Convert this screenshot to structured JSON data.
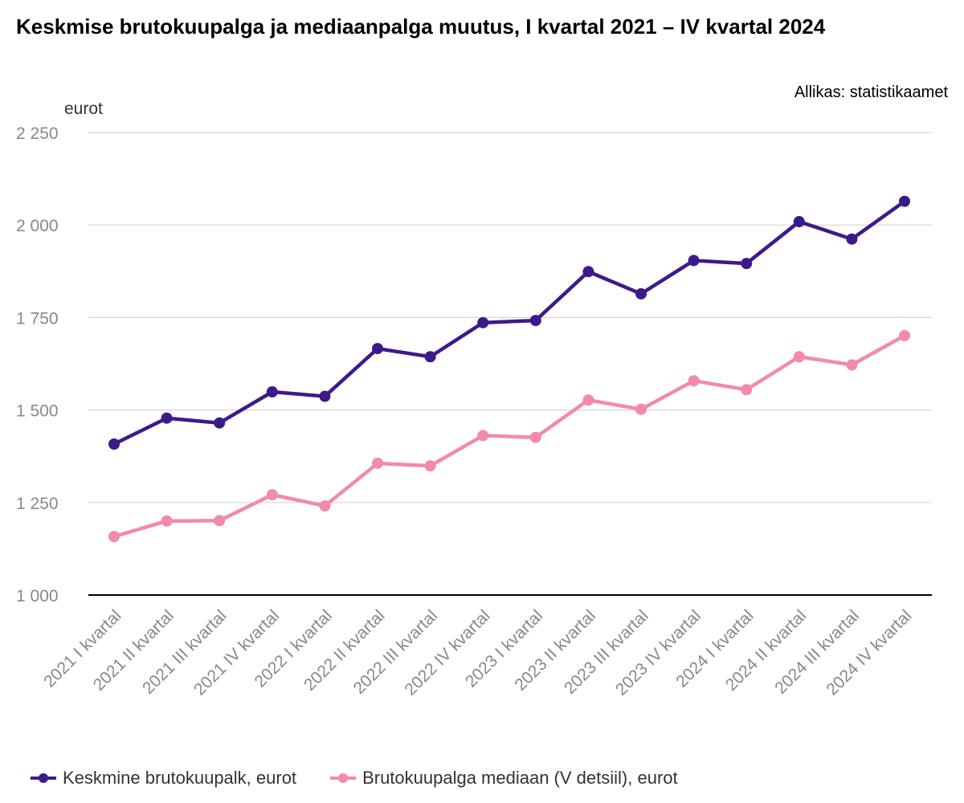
{
  "chart_data": {
    "type": "line",
    "title": "Keskmise brutokuupalga ja mediaanpalga muutus, I kvartal 2021 – IV kvartal 2024",
    "source": "Allikas: statistikaamet",
    "ylabel": "eurot",
    "ylim": [
      1000,
      2250
    ],
    "yticks": [
      1000,
      1250,
      1500,
      1750,
      2000,
      2250
    ],
    "ytick_labels": [
      "1 000",
      "1 250",
      "1 500",
      "1 750",
      "2 000",
      "2 250"
    ],
    "grid": true,
    "legend_position": "bottom-left",
    "categories": [
      "2021 I kvartal",
      "2021 II kvartal",
      "2021 III kvartal",
      "2021 IV kvartal",
      "2022 I kvartal",
      "2022 II kvartal",
      "2022 III kvartal",
      "2022 IV kvartal",
      "2023 I kvartal",
      "2023 II kvartal",
      "2023 III kvartal",
      "2023 IV kvartal",
      "2024 I kvartal",
      "2024 II kvartal",
      "2024 III kvartal",
      "2024 IV kvartal"
    ],
    "series": [
      {
        "name": "Keskmine brutokuupalk, eurot",
        "color": "#3d1a8a",
        "values": [
          1408,
          1478,
          1465,
          1549,
          1537,
          1666,
          1644,
          1736,
          1742,
          1874,
          1814,
          1904,
          1896,
          2009,
          1962,
          2064
        ]
      },
      {
        "name": "Brutokuupalga mediaan (V detsiil), eurot",
        "color": "#f28aa8",
        "values": [
          1158,
          1200,
          1201,
          1271,
          1241,
          1356,
          1349,
          1431,
          1426,
          1527,
          1502,
          1579,
          1555,
          1644,
          1622,
          1701
        ]
      }
    ]
  }
}
